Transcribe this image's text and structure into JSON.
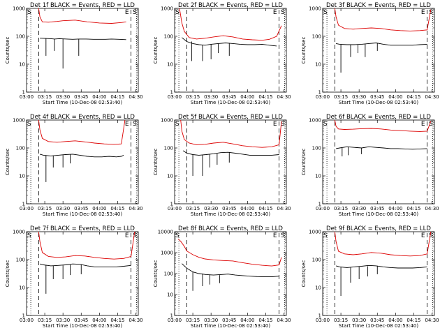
{
  "colors": {
    "events": "#000000",
    "lld": "#dd0000",
    "axes": "#000000",
    "background": "#ffffff"
  },
  "chart_data": [
    {
      "type": "line",
      "title": "Det 1f BLACK = Events, RED = LLD",
      "xlabel": "Start Time (10-Dec-08 02:53:40)",
      "ylabel": "Counts/sec",
      "x_ticks": [
        "03:00",
        "03:15",
        "03:30",
        "03:45",
        "04:00",
        "04:15",
        "04:30"
      ],
      "y_ticks": [
        "1",
        "10",
        "100",
        "1000"
      ],
      "ylim": [
        1,
        1000
      ],
      "y_scale": "log",
      "markers": [
        "S",
        "E",
        "S"
      ],
      "series": [
        {
          "color": "events",
          "x": [
            "03:11",
            "03:12",
            "03:20",
            "03:23",
            "03:27",
            "03:33",
            "03:38",
            "03:43",
            "03:49",
            "03:55",
            "04:00",
            "04:05",
            "04:10",
            "04:16",
            "04:22"
          ],
          "y": [
            85,
            85,
            82,
            80,
            82,
            80,
            78,
            80,
            80,
            78,
            78,
            78,
            80,
            78,
            76
          ]
        },
        {
          "color": "lld",
          "x": [
            "03:10",
            "03:11",
            "03:13",
            "03:18",
            "03:25",
            "03:30",
            "03:40",
            "03:50",
            "04:00",
            "04:10",
            "04:18",
            "04:22"
          ],
          "y": [
            1000,
            500,
            330,
            320,
            340,
            360,
            380,
            330,
            300,
            290,
            310,
            330
          ]
        }
      ],
      "dips": {
        "x": [
          "03:16",
          "03:23",
          "03:30",
          "03:43"
        ],
        "y": [
          20,
          30,
          7,
          20
        ]
      }
    },
    {
      "type": "line",
      "title": "Det 2f BLACK = Events, RED = LLD",
      "xlabel": "Start Time (10-Dec-08 02:53:40)",
      "ylabel": "Counts/sec",
      "x_ticks": [
        "03:00",
        "03:15",
        "03:30",
        "03:45",
        "04:00",
        "04:15",
        "04:30"
      ],
      "y_ticks": [
        "1",
        "10",
        "100",
        "1000"
      ],
      "ylim": [
        1,
        1000
      ],
      "y_scale": "log",
      "markers": [
        "S",
        "E",
        "S"
      ],
      "series": [
        {
          "color": "events",
          "x": [
            "03:06",
            "03:10",
            "03:15",
            "03:20",
            "03:25",
            "03:30",
            "03:36",
            "03:42",
            "03:48",
            "03:54",
            "04:00",
            "04:06",
            "04:12",
            "04:18",
            "04:24"
          ],
          "y": [
            90,
            65,
            55,
            50,
            48,
            52,
            55,
            58,
            55,
            52,
            50,
            50,
            52,
            48,
            45
          ]
        },
        {
          "color": "lld",
          "x": [
            "03:04",
            "03:06",
            "03:08",
            "03:12",
            "03:18",
            "03:25",
            "03:32",
            "03:40",
            "03:48",
            "03:56",
            "04:04",
            "04:12",
            "04:18",
            "04:24",
            "04:28"
          ],
          "y": [
            1000,
            300,
            150,
            90,
            80,
            85,
            95,
            105,
            95,
            80,
            75,
            72,
            78,
            100,
            240
          ]
        }
      ],
      "dips": {
        "x": [
          "03:14",
          "03:23",
          "03:30",
          "03:36",
          "03:45"
        ],
        "y": [
          13,
          13,
          15,
          25,
          20
        ]
      }
    },
    {
      "type": "line",
      "title": "Det 3f BLACK = Events, RED = LLD",
      "xlabel": "Start Time (10-Dec-08 02:53:40)",
      "ylabel": "Counts/sec",
      "x_ticks": [
        "03:00",
        "03:15",
        "03:30",
        "03:45",
        "04:00",
        "04:15",
        "04:30"
      ],
      "y_ticks": [
        "1",
        "10",
        "100",
        "1000"
      ],
      "ylim": [
        1,
        1000
      ],
      "y_scale": "log",
      "markers": [
        "S",
        "E",
        "S"
      ],
      "series": [
        {
          "color": "events",
          "x": [
            "03:11",
            "03:14",
            "03:20",
            "03:26",
            "03:32",
            "03:38",
            "03:44",
            "03:50",
            "03:56",
            "04:02",
            "04:08",
            "04:14",
            "04:20",
            "04:26"
          ],
          "y": [
            55,
            52,
            50,
            50,
            52,
            55,
            58,
            52,
            48,
            48,
            48,
            48,
            50,
            52
          ]
        },
        {
          "color": "lld",
          "x": [
            "03:10",
            "03:11",
            "03:13",
            "03:18",
            "03:25",
            "03:32",
            "03:40",
            "03:48",
            "03:56",
            "04:04",
            "04:12",
            "04:20",
            "04:26",
            "04:29"
          ],
          "y": [
            1000,
            500,
            250,
            190,
            180,
            190,
            200,
            190,
            170,
            160,
            155,
            160,
            170,
            900
          ]
        }
      ],
      "dips": {
        "x": [
          "03:15",
          "03:23",
          "03:29",
          "03:35",
          "03:45"
        ],
        "y": [
          5,
          18,
          25,
          18,
          30
        ]
      }
    },
    {
      "type": "line",
      "title": "Det 4f BLACK = Events, RED = LLD",
      "xlabel": "Start Time (10-Dec-08 02:53:40)",
      "ylabel": "Counts/sec",
      "x_ticks": [
        "03:00",
        "03:15",
        "03:30",
        "03:45",
        "04:00",
        "04:15",
        "04:30"
      ],
      "y_ticks": [
        "1",
        "10",
        "100",
        "1000"
      ],
      "ylim": [
        1,
        1000
      ],
      "y_scale": "log",
      "markers": [
        "S",
        "E",
        "S"
      ],
      "series": [
        {
          "color": "events",
          "x": [
            "03:11",
            "03:14",
            "03:20",
            "03:26",
            "03:32",
            "03:38",
            "03:44",
            "03:50",
            "03:56",
            "04:02",
            "04:08",
            "04:14",
            "04:18",
            "04:20"
          ],
          "y": [
            60,
            55,
            52,
            55,
            58,
            60,
            55,
            50,
            48,
            48,
            50,
            48,
            50,
            55
          ]
        },
        {
          "color": "lld",
          "x": [
            "03:10",
            "03:11",
            "03:13",
            "03:18",
            "03:25",
            "03:32",
            "03:40",
            "03:48",
            "03:56",
            "04:04",
            "04:12",
            "04:18",
            "04:21"
          ],
          "y": [
            1000,
            450,
            220,
            170,
            160,
            170,
            180,
            165,
            150,
            140,
            135,
            140,
            1000
          ]
        }
      ],
      "dips": {
        "x": [
          "03:16",
          "03:22",
          "03:30",
          "03:36"
        ],
        "y": [
          6,
          20,
          20,
          28
        ]
      }
    },
    {
      "type": "line",
      "title": "Det 5f BLACK = Events, RED = LLD",
      "xlabel": "Start Time (10-Dec-08 02:53:40)",
      "ylabel": "Counts/sec",
      "x_ticks": [
        "03:00",
        "03:15",
        "03:30",
        "03:45",
        "04:00",
        "04:15",
        "04:30"
      ],
      "y_ticks": [
        "1",
        "10",
        "100",
        "1000"
      ],
      "ylim": [
        1,
        1000
      ],
      "y_scale": "log",
      "markers": [
        "S",
        "E",
        "S"
      ],
      "series": [
        {
          "color": "events",
          "x": [
            "03:07",
            "03:10",
            "03:15",
            "03:20",
            "03:26",
            "03:32",
            "03:38",
            "03:44",
            "03:50",
            "03:56",
            "04:02",
            "04:08",
            "04:14",
            "04:20",
            "04:26"
          ],
          "y": [
            80,
            65,
            58,
            55,
            58,
            62,
            68,
            70,
            65,
            60,
            55,
            55,
            55,
            55,
            58
          ]
        },
        {
          "color": "lld",
          "x": [
            "03:05",
            "03:06",
            "03:08",
            "03:12",
            "03:18",
            "03:25",
            "03:32",
            "03:40",
            "03:48",
            "03:56",
            "04:04",
            "04:12",
            "04:20",
            "04:26",
            "04:28"
          ],
          "y": [
            1000,
            400,
            200,
            150,
            130,
            135,
            150,
            160,
            140,
            120,
            110,
            105,
            110,
            130,
            900
          ]
        }
      ],
      "dips": {
        "x": [
          "03:15",
          "03:23",
          "03:29",
          "03:35",
          "03:45"
        ],
        "y": [
          10,
          10,
          20,
          25,
          30
        ]
      }
    },
    {
      "type": "line",
      "title": "Det 6f BLACK = Events, RED = LLD",
      "xlabel": "Start Time (10-Dec-08 02:53:40)",
      "ylabel": "Counts/sec",
      "x_ticks": [
        "03:00",
        "03:15",
        "03:30",
        "03:45",
        "04:00",
        "04:15",
        "04:30"
      ],
      "y_ticks": [
        "1",
        "10",
        "100",
        "1000"
      ],
      "ylim": [
        1,
        1000
      ],
      "y_scale": "log",
      "markers": [
        "S",
        "E",
        "S"
      ],
      "series": [
        {
          "color": "events",
          "x": [
            "03:11",
            "03:14",
            "03:20",
            "03:26",
            "03:32",
            "03:38",
            "03:44",
            "03:50",
            "03:56",
            "04:02",
            "04:08",
            "04:14",
            "04:20",
            "04:26"
          ],
          "y": [
            95,
            100,
            110,
            105,
            100,
            110,
            105,
            100,
            95,
            95,
            92,
            90,
            92,
            95
          ]
        },
        {
          "color": "lld",
          "x": [
            "03:10",
            "03:11",
            "03:13",
            "03:18",
            "03:25",
            "03:32",
            "03:40",
            "03:48",
            "03:56",
            "04:04",
            "04:12",
            "04:20",
            "04:26",
            "04:29"
          ],
          "y": [
            1000,
            600,
            480,
            460,
            470,
            490,
            500,
            480,
            440,
            420,
            400,
            390,
            400,
            900
          ]
        }
      ],
      "dips": {
        "x": [
          "03:16",
          "03:21",
          "03:32"
        ],
        "y": [
          50,
          55,
          60
        ]
      }
    },
    {
      "type": "line",
      "title": "Det 7f BLACK = Events, RED = LLD",
      "xlabel": "Start Time (10-Dec-08 02:53:40)",
      "ylabel": "Counts/sec",
      "x_ticks": [
        "03:00",
        "03:15",
        "03:30",
        "03:45",
        "04:00",
        "04:15",
        "04:30"
      ],
      "y_ticks": [
        "1",
        "10",
        "100",
        "1000"
      ],
      "ylim": [
        1,
        1000
      ],
      "y_scale": "log",
      "markers": [
        "S",
        "E",
        "S"
      ],
      "series": [
        {
          "color": "events",
          "x": [
            "03:11",
            "03:14",
            "03:20",
            "03:26",
            "03:32",
            "03:38",
            "03:44",
            "03:50",
            "03:56",
            "04:02",
            "04:08",
            "04:14",
            "04:20",
            "04:26"
          ],
          "y": [
            70,
            65,
            60,
            62,
            65,
            70,
            68,
            60,
            55,
            55,
            55,
            55,
            58,
            62
          ]
        },
        {
          "color": "lld",
          "x": [
            "03:10",
            "03:11",
            "03:13",
            "03:18",
            "03:25",
            "03:32",
            "03:40",
            "03:48",
            "03:56",
            "04:04",
            "04:12",
            "04:20",
            "04:26",
            "04:29"
          ],
          "y": [
            1000,
            450,
            180,
            130,
            120,
            125,
            140,
            135,
            120,
            110,
            105,
            110,
            130,
            1000
          ]
        }
      ],
      "dips": {
        "x": [
          "03:16",
          "03:22",
          "03:30",
          "03:36",
          "03:45"
        ],
        "y": [
          6,
          20,
          20,
          28,
          30
        ]
      }
    },
    {
      "type": "line",
      "title": "Det 8f BLACK = Events, RED = LLD",
      "xlabel": "Start Time (10-Dec-08 02:53:40)",
      "ylabel": "Counts/sec",
      "x_ticks": [
        "03:00",
        "03:15",
        "03:30",
        "03:45",
        "04:00",
        "04:15",
        "04:30"
      ],
      "y_ticks": [
        "1",
        "10",
        "100",
        "1000",
        "10000"
      ],
      "ylim": [
        1,
        10000
      ],
      "y_scale": "log",
      "markers": [
        "S",
        "E",
        "S"
      ],
      "series": [
        {
          "color": "events",
          "x": [
            "03:06",
            "03:10",
            "03:15",
            "03:20",
            "03:26",
            "03:32",
            "03:38",
            "03:44",
            "03:50",
            "03:56",
            "04:02",
            "04:08",
            "04:14",
            "04:20",
            "04:26"
          ],
          "y": [
            300,
            180,
            120,
            100,
            90,
            85,
            90,
            95,
            85,
            80,
            75,
            72,
            70,
            70,
            75
          ]
        },
        {
          "color": "lld",
          "x": [
            "03:03",
            "03:05",
            "03:08",
            "03:10",
            "03:15",
            "03:20",
            "03:25",
            "03:32",
            "03:40",
            "03:48",
            "03:56",
            "04:04",
            "04:12",
            "04:20",
            "04:26",
            "04:28"
          ],
          "y": [
            4500,
            3500,
            2000,
            1200,
            800,
            600,
            500,
            450,
            420,
            400,
            330,
            280,
            250,
            230,
            260,
            600
          ]
        }
      ],
      "dips": {
        "x": [
          "03:15",
          "03:23",
          "03:29",
          "03:37"
        ],
        "y": [
          15,
          25,
          30,
          35
        ]
      }
    },
    {
      "type": "line",
      "title": "Det 9f BLACK = Events, RED = LLD",
      "xlabel": "Start Time (10-Dec-08 02:53:40)",
      "ylabel": "Counts/sec",
      "x_ticks": [
        "03:00",
        "03:15",
        "03:30",
        "03:45",
        "04:00",
        "04:15",
        "04:30"
      ],
      "y_ticks": [
        "1",
        "10",
        "100",
        "1000"
      ],
      "ylim": [
        1,
        1000
      ],
      "y_scale": "log",
      "markers": [
        "S",
        "E",
        "S"
      ],
      "series": [
        {
          "color": "events",
          "x": [
            "03:11",
            "03:14",
            "03:20",
            "03:26",
            "03:32",
            "03:38",
            "03:44",
            "03:50",
            "03:56",
            "04:02",
            "04:08",
            "04:14",
            "04:20",
            "04:26"
          ],
          "y": [
            60,
            55,
            52,
            55,
            58,
            62,
            60,
            55,
            52,
            50,
            50,
            50,
            52,
            55
          ]
        },
        {
          "color": "lld",
          "x": [
            "03:10",
            "03:11",
            "03:13",
            "03:18",
            "03:25",
            "03:32",
            "03:40",
            "03:48",
            "03:56",
            "04:04",
            "04:12",
            "04:20",
            "04:26",
            "04:29"
          ],
          "y": [
            1000,
            450,
            200,
            160,
            150,
            160,
            180,
            170,
            150,
            140,
            135,
            140,
            160,
            1000
          ]
        }
      ],
      "dips": {
        "x": [
          "03:15",
          "03:23",
          "03:30",
          "03:37",
          "03:45"
        ],
        "y": [
          5,
          15,
          20,
          25,
          30
        ]
      }
    }
  ]
}
